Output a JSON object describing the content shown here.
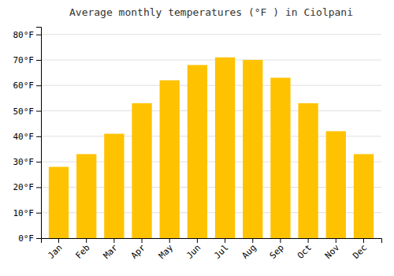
{
  "chart_data": {
    "type": "bar",
    "title": "Average monthly temperatures (°F ) in Ciolpani",
    "categories": [
      "Jan",
      "Feb",
      "Mar",
      "Apr",
      "May",
      "Jun",
      "Jul",
      "Aug",
      "Sep",
      "Oct",
      "Nov",
      "Dec"
    ],
    "values": [
      28,
      33,
      41,
      53,
      62,
      68,
      71,
      70,
      63,
      53,
      42,
      33
    ],
    "color": "#FFC200",
    "ylim": [
      0,
      83
    ],
    "yticks": [
      {
        "value": 0,
        "label": "0°F"
      },
      {
        "value": 10,
        "label": "10°F"
      },
      {
        "value": 20,
        "label": "20°F"
      },
      {
        "value": 30,
        "label": "30°F"
      },
      {
        "value": 40,
        "label": "40°F"
      },
      {
        "value": 50,
        "label": "50°F"
      },
      {
        "value": 60,
        "label": "60°F"
      },
      {
        "value": 70,
        "label": "70°F"
      },
      {
        "value": 80,
        "label": "80°F"
      }
    ],
    "grid": true
  }
}
